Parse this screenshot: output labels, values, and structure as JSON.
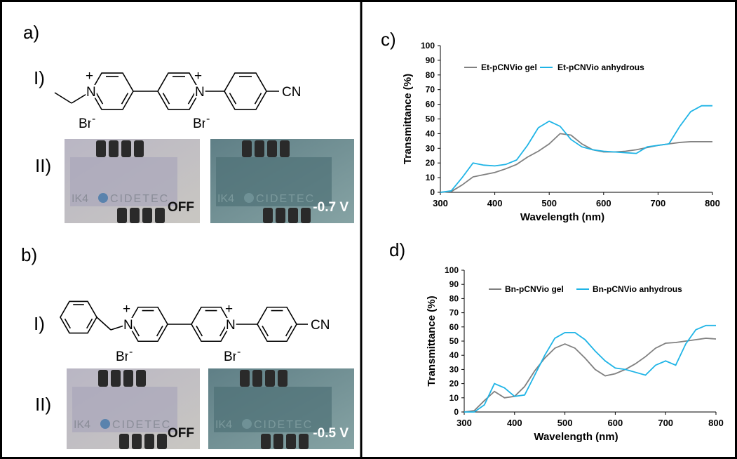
{
  "panel_a": {
    "label": "a)",
    "part_1": "I)",
    "part_2": "II)",
    "atoms": [
      "N",
      "N",
      "CN"
    ],
    "charges": [
      "+",
      "+"
    ],
    "counterions": [
      "Br",
      "Br"
    ],
    "counterion_charges": [
      "-",
      "-"
    ],
    "photos": [
      {
        "logo_left": "IK4",
        "logo_right": "CIDETEC",
        "state": "OFF"
      },
      {
        "logo_left": "IK4",
        "logo_right": "CIDETEC",
        "state": "-0.7 V"
      }
    ]
  },
  "panel_b": {
    "label": "b)",
    "part_1": "I)",
    "part_2": "II)",
    "atoms": [
      "N",
      "N",
      "CN"
    ],
    "charges": [
      "+",
      "+"
    ],
    "counterions": [
      "Br",
      "Br"
    ],
    "counterion_charges": [
      "-",
      "-"
    ],
    "photos": [
      {
        "logo_left": "IK4",
        "logo_right": "CIDETEC",
        "state": "OFF"
      },
      {
        "logo_left": "IK4",
        "logo_right": "CIDETEC",
        "state": "-0.5 V"
      }
    ]
  },
  "chart_data": [
    {
      "type": "line",
      "panel_label": "c)",
      "x_label": "Wavelength (nm)",
      "y_label": "Transmittance (%)",
      "x": [
        300,
        320,
        340,
        360,
        380,
        400,
        420,
        440,
        460,
        480,
        500,
        520,
        540,
        560,
        580,
        600,
        620,
        640,
        660,
        680,
        700,
        720,
        740,
        760,
        780,
        800
      ],
      "series": [
        {
          "name": "Et-pCNVio gel",
          "color": "#808080",
          "values": [
            0,
            0.5,
            5,
            10.5,
            12,
            13.5,
            16,
            19,
            24,
            28,
            33,
            40,
            39,
            33,
            29,
            27.5,
            27.5,
            28,
            29,
            30.5,
            32,
            33,
            34,
            34.5,
            34.5,
            34.5
          ]
        },
        {
          "name": "Et-pCNVio anhydrous",
          "color": "#1fb4e6",
          "values": [
            0,
            1,
            10,
            20,
            18.5,
            18,
            19,
            22,
            32,
            44,
            48.5,
            45,
            36,
            31,
            29,
            28,
            27.5,
            27,
            26.5,
            31,
            32,
            33,
            45,
            55,
            59,
            59
          ]
        }
      ],
      "xlim": [
        300,
        800
      ],
      "xticks": [
        300,
        400,
        500,
        600,
        700,
        800
      ],
      "ylim": [
        0,
        100
      ],
      "yticks": [
        0,
        10,
        20,
        30,
        40,
        50,
        60,
        70,
        80,
        90,
        100
      ],
      "grid": false,
      "legend": "top"
    },
    {
      "type": "line",
      "panel_label": "d)",
      "x_label": "Wavelength (nm)",
      "y_label": "Transmittance (%)",
      "x": [
        300,
        320,
        340,
        360,
        380,
        400,
        420,
        440,
        460,
        480,
        500,
        520,
        540,
        560,
        580,
        600,
        620,
        640,
        660,
        680,
        700,
        720,
        740,
        760,
        780,
        800
      ],
      "series": [
        {
          "name": "Bn-pCNVio gel",
          "color": "#808080",
          "values": [
            0,
            1,
            8,
            14.5,
            10,
            11,
            18,
            29,
            38,
            45,
            48,
            45,
            38,
            30,
            25.5,
            27,
            30,
            34,
            39,
            45,
            48.5,
            49,
            50,
            51,
            52,
            51.5
          ]
        },
        {
          "name": "Bn-pCNVio anhydrous",
          "color": "#1fb4e6",
          "values": [
            0,
            0,
            5,
            20,
            17,
            11,
            12,
            26,
            40,
            52,
            56,
            56,
            51,
            43,
            36,
            31,
            30,
            28,
            26,
            33,
            36,
            33,
            48,
            58,
            61,
            61
          ]
        }
      ],
      "xlim": [
        300,
        800
      ],
      "xticks": [
        300,
        400,
        500,
        600,
        700,
        800
      ],
      "ylim": [
        0,
        100
      ],
      "yticks": [
        0,
        10,
        20,
        30,
        40,
        50,
        60,
        70,
        80,
        90,
        100
      ],
      "grid": false,
      "legend": "top"
    }
  ]
}
